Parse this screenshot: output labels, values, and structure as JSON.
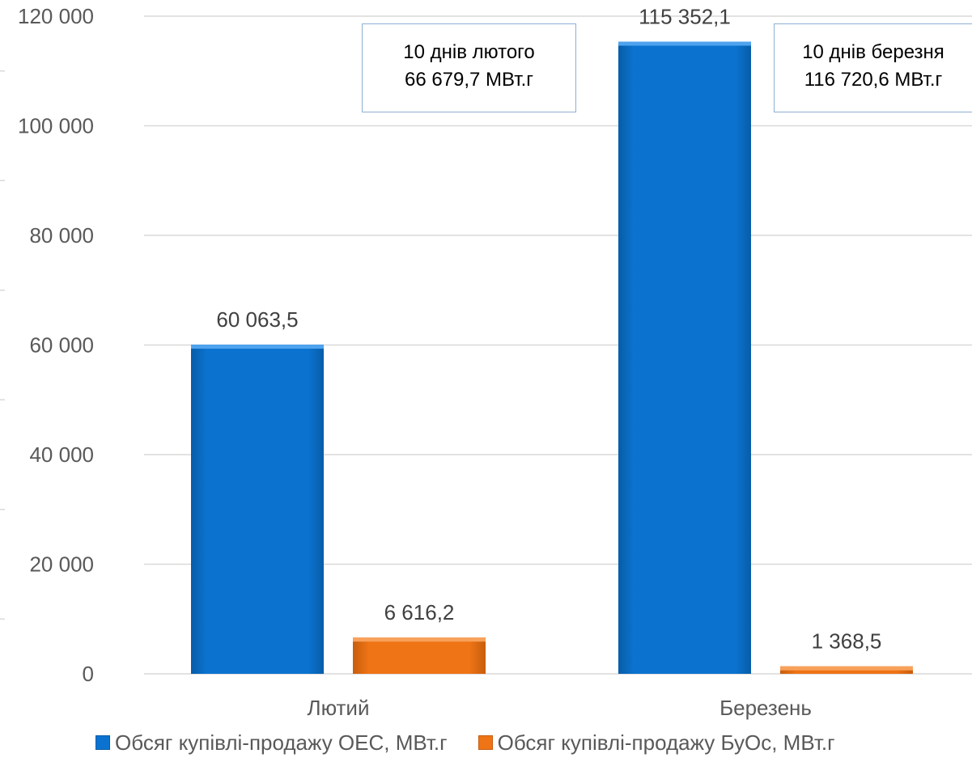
{
  "chart_data": {
    "type": "bar",
    "categories": [
      "Лютий",
      "Березень"
    ],
    "series": [
      {
        "name": "Обсяг купівлі-продажу ОЕС, МВт.г",
        "values": [
          60063.5,
          115352.1
        ],
        "labels": [
          "60 063,5",
          "115 352,1"
        ],
        "color": "#0B73CF"
      },
      {
        "name": "Обсяг купівлі-продажу БуОс, МВт.г",
        "values": [
          6616.2,
          1368.5
        ],
        "labels": [
          "6 616,2",
          "1 368,5"
        ],
        "color": "#EE7415"
      }
    ],
    "ylim": [
      0,
      120000
    ],
    "yticks": [
      0,
      20000,
      40000,
      60000,
      80000,
      100000,
      120000
    ],
    "ytick_labels": [
      "0",
      "20 000",
      "40 000",
      "60 000",
      "80 000",
      "100 000",
      "120 000"
    ],
    "grid": true,
    "legend_position": "bottom",
    "annotations": [
      {
        "line1": "10 днів лютого",
        "line2": "66 679,7 МВт.г"
      },
      {
        "line1": "10 днів березня",
        "line2": "116 720,6 МВт.г"
      }
    ]
  }
}
